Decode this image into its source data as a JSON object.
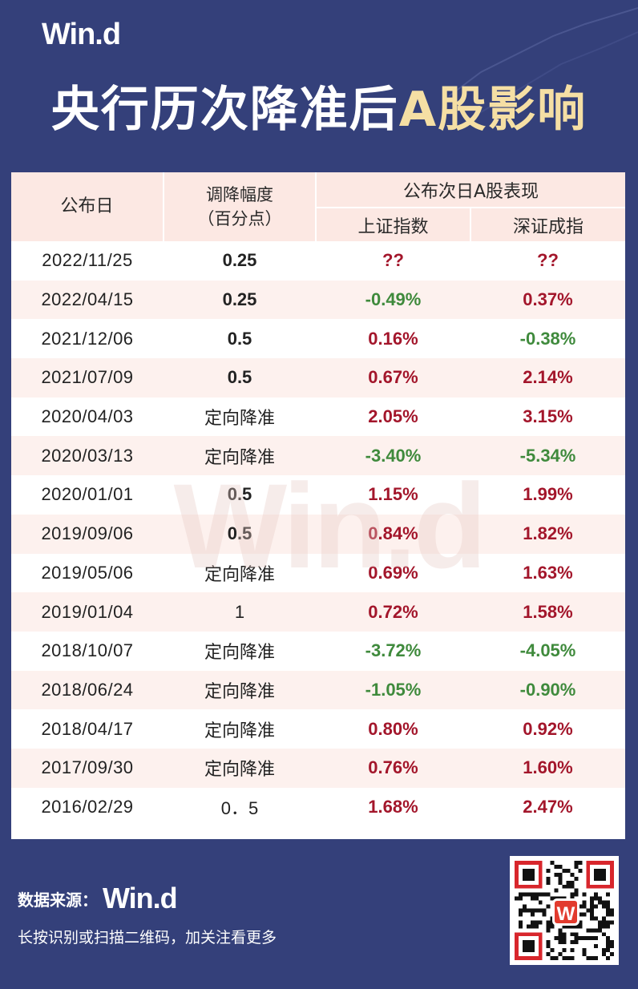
{
  "brand": {
    "logo": "Win.d"
  },
  "title": {
    "main": "央行历次降准后",
    "highlight": "A股影响"
  },
  "table": {
    "headers": {
      "date": "公布日",
      "cut_line1": "调降幅度",
      "cut_line2": "（百分点）",
      "group": "公布次日A股表现",
      "sh": "上证指数",
      "sz": "深证成指"
    },
    "rows": [
      {
        "date": "2022/11/25",
        "cut": "0.25",
        "sh": "??",
        "sz": "??"
      },
      {
        "date": "2022/04/15",
        "cut": "0.25",
        "sh": "-0.49%",
        "sz": "0.37%"
      },
      {
        "date": "2021/12/06",
        "cut": "0.5",
        "sh": "0.16%",
        "sz": "-0.38%"
      },
      {
        "date": "2021/07/09",
        "cut": "0.5",
        "sh": "0.67%",
        "sz": "2.14%"
      },
      {
        "date": "2020/04/03",
        "cut": "定向降准",
        "sh": "2.05%",
        "sz": "3.15%"
      },
      {
        "date": "2020/03/13",
        "cut": "定向降准",
        "sh": "-3.40%",
        "sz": "-5.34%"
      },
      {
        "date": "2020/01/01",
        "cut": "0.5",
        "sh": "1.15%",
        "sz": "1.99%"
      },
      {
        "date": "2019/09/06",
        "cut": "0.5",
        "sh": "0.84%",
        "sz": "1.82%"
      },
      {
        "date": "2019/05/06",
        "cut": "定向降准",
        "sh": "0.69%",
        "sz": "1.63%"
      },
      {
        "date": "2019/01/04",
        "cut": "1",
        "sh": "0.72%",
        "sz": "1.58%"
      },
      {
        "date": "2018/10/07",
        "cut": "定向降准",
        "sh": "-3.72%",
        "sz": "-4.05%"
      },
      {
        "date": "2018/06/24",
        "cut": "定向降准",
        "sh": "-1.05%",
        "sz": "-0.90%"
      },
      {
        "date": "2018/04/17",
        "cut": "定向降准",
        "sh": "0.80%",
        "sz": "0.92%"
      },
      {
        "date": "2017/09/30",
        "cut": "定向降准",
        "sh": "0.76%",
        "sz": "1.60%"
      },
      {
        "date": "2016/02/29",
        "cut": "0．5",
        "sh": "1.68%",
        "sz": "2.47%"
      }
    ]
  },
  "watermark": "Win.d",
  "footer": {
    "source_label": "数据来源：",
    "source_logo": "Win.d",
    "tip": "长按识别或扫描二维码，加关注看更多",
    "qr_badge": "W"
  },
  "colors": {
    "background": "#34407a",
    "header_bg": "#fce8e3",
    "up": "#a3162b",
    "down": "#3f8a3c",
    "title_highlight": "#f5dfa4"
  }
}
